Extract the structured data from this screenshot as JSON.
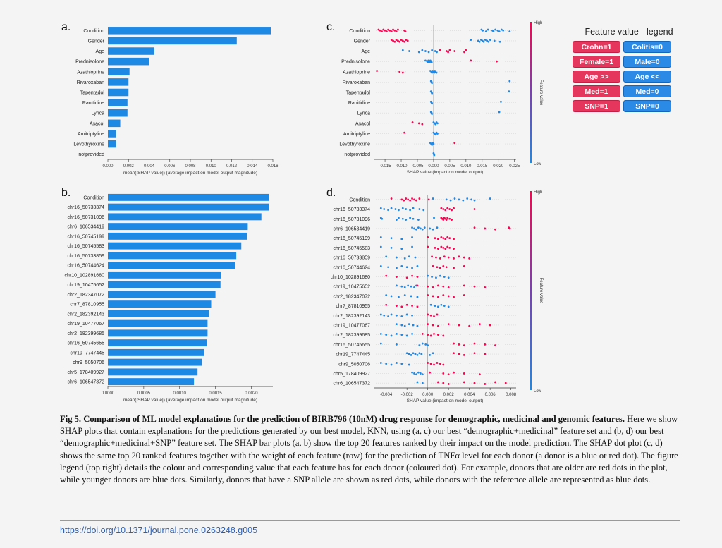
{
  "colors": {
    "bar": "#1e88e5",
    "red": "#ff0052",
    "blue": "#1e88e5"
  },
  "panels": {
    "a": "a.",
    "b": "b.",
    "c": "c.",
    "d": "d."
  },
  "chart_data": [
    {
      "panel": "a",
      "type": "bar",
      "orientation": "horizontal",
      "categories": [
        "Condition",
        "Gender",
        "Age",
        "Prednisolone",
        "Azathioprine",
        "Rivaroxaban",
        "Tapentadol",
        "Ranitidine",
        "Lyrica",
        "Asacol",
        "Amitriptyline",
        "Levothyroxine",
        "notprovided"
      ],
      "values": [
        0.0158,
        0.0125,
        0.0045,
        0.004,
        0.0021,
        0.002,
        0.002,
        0.0019,
        0.0019,
        0.0012,
        0.0008,
        0.0008,
        0.0
      ],
      "xlim": [
        0,
        0.016
      ],
      "xticks": [
        "0.000",
        "0.002",
        "0.004",
        "0.006",
        "0.008",
        "0.010",
        "0.012",
        "0.014",
        "0.016"
      ],
      "xlabel": "mean(|SHAP value|) (average impact on model output magnitude)"
    },
    {
      "panel": "b",
      "type": "bar",
      "orientation": "horizontal",
      "categories": [
        "Condition",
        "chr16_50733374",
        "chr16_50731096",
        "chr6_106534419",
        "chr16_50745199",
        "chr16_50745583",
        "chr16_50733859",
        "chr16_50744624",
        "chr10_102891680",
        "chr19_10475652",
        "chr2_182347072",
        "chr7_87810955",
        "chr2_182392143",
        "chr19_10477067",
        "chr2_182399685",
        "chr16_50745655",
        "chr19_7747445",
        "chr9_5050706",
        "chr5_178409927",
        "chr6_106547372"
      ],
      "values": [
        0.00225,
        0.00225,
        0.00214,
        0.00195,
        0.00194,
        0.00186,
        0.00179,
        0.00177,
        0.00158,
        0.00157,
        0.0015,
        0.00144,
        0.00141,
        0.00139,
        0.00139,
        0.00138,
        0.00134,
        0.00131,
        0.00125,
        0.0012
      ],
      "xlim": [
        0,
        0.0023
      ],
      "xticks": [
        "0.0000",
        "0.0005",
        "0.0010",
        "0.0015",
        "0.0020"
      ],
      "xlabel": "mean(|SHAP value|) (average impact on model output magnitude)"
    },
    {
      "panel": "c",
      "type": "scatter",
      "categories": [
        "Condition",
        "Gender",
        "Age",
        "Prednisolone",
        "Azathioprine",
        "Rivaroxaban",
        "Tapentadol",
        "Ranitidine",
        "Lyrica",
        "Asacol",
        "Amitriptyline",
        "Levothyroxine",
        "notprovided"
      ],
      "xlim": [
        -0.0185,
        0.0255
      ],
      "xticks": [
        -0.015,
        -0.01,
        -0.005,
        0.0,
        0.005,
        0.01,
        0.015,
        0.02,
        0.025
      ],
      "xticklabels": [
        "-0.015",
        "-0.010",
        "-0.005",
        "0.000",
        "0.005",
        "0.010",
        "0.015",
        "0.020",
        "0.025"
      ],
      "xlabel": "SHAP value (impact on model output)",
      "colorbar_label": "Feature value",
      "colorbar_high": "High",
      "colorbar_low": "Low",
      "points": [
        {
          "row": 0,
          "red": [
            -0.017,
            -0.0165,
            -0.016,
            -0.0155,
            -0.015,
            -0.0145,
            -0.014,
            -0.0135,
            -0.013,
            -0.0125,
            -0.012,
            -0.0115,
            -0.011,
            -0.009,
            -0.0087
          ],
          "blue": [
            0.0148,
            0.0152,
            0.0162,
            0.0168,
            0.0182,
            0.0185,
            0.0191,
            0.0198,
            0.0203,
            0.021,
            0.0215,
            0.0235
          ]
        },
        {
          "row": 1,
          "red": [
            -0.013,
            -0.0125,
            -0.012,
            -0.0115,
            -0.011,
            -0.0105,
            -0.01,
            -0.0095,
            -0.009,
            -0.0085,
            -0.008
          ],
          "blue": [
            0.0115,
            0.0138,
            0.0142,
            0.0147,
            0.0151,
            0.0155,
            0.016,
            0.0165,
            0.017,
            0.0175,
            0.0188,
            0.0205
          ]
        },
        {
          "row": 2,
          "red": [
            0.002,
            0.004,
            0.0045,
            0.005,
            0.0065,
            0.0095,
            0.01
          ],
          "blue": [
            -0.0095,
            -0.0075,
            -0.0045,
            -0.0035,
            -0.0025,
            -0.0015,
            -0.0005,
            0.0005,
            0.001
          ]
        },
        {
          "row": 3,
          "red": [
            0.0115,
            0.0195
          ],
          "blue": [
            -0.0025,
            -0.002,
            -0.0018,
            -0.0016,
            -0.0014,
            -0.0012,
            -0.001,
            -0.0008,
            -0.0006
          ]
        },
        {
          "row": 4,
          "red": [
            -0.0175,
            -0.0105,
            -0.0095
          ],
          "blue": [
            -0.001,
            -0.0007,
            -0.0005,
            -0.0003,
            0.0,
            0.0002,
            0.0004,
            0.0006,
            0.0009
          ]
        },
        {
          "row": 5,
          "red": [],
          "blue": [
            -0.0008,
            -0.0006,
            -0.0005,
            0.0235
          ]
        },
        {
          "row": 6,
          "red": [],
          "blue": [
            -0.0008,
            -0.0006,
            -0.0005,
            0.0233
          ]
        },
        {
          "row": 7,
          "red": [],
          "blue": [
            -0.0008,
            -0.0006,
            -0.0005,
            0.0208
          ]
        },
        {
          "row": 8,
          "red": [],
          "blue": [
            -0.0008,
            -0.0006,
            -0.0005,
            0.0203
          ]
        },
        {
          "row": 9,
          "red": [
            -0.0065,
            -0.0045,
            -0.0035
          ],
          "blue": [
            0.0,
            0.0003,
            0.0006,
            0.0009,
            0.0012
          ]
        },
        {
          "row": 10,
          "red": [
            -0.009
          ],
          "blue": [
            0.0,
            0.0003,
            0.0006,
            0.0009,
            0.0012
          ]
        },
        {
          "row": 11,
          "red": [
            0.0065
          ],
          "blue": [
            -0.001,
            -0.0007,
            -0.0005,
            -0.0003,
            0.0
          ]
        },
        {
          "row": 12,
          "red": [],
          "blue": [
            0.0,
            0.0001,
            0.0002
          ]
        }
      ]
    },
    {
      "panel": "d",
      "type": "scatter",
      "categories": [
        "Condition",
        "chr16_50733374",
        "chr16_50731096",
        "chr6_106534419",
        "chr16_50745199",
        "chr16_50745583",
        "chr16_50733859",
        "chr16_50744624",
        "chr10_102891680",
        "chr19_10475652",
        "chr2_182347072",
        "chr7_87810955",
        "chr2_182392143",
        "chr19_10477067",
        "chr2_182399685",
        "chr16_50745655",
        "chr19_7747445",
        "chr9_5050706",
        "chr5_178409927",
        "chr6_106547372"
      ],
      "xlim": [
        -0.0052,
        0.0085
      ],
      "xticks": [
        -0.004,
        -0.002,
        0.0,
        0.002,
        0.004,
        0.006,
        0.008
      ],
      "xticklabels": [
        "-0.004",
        "-0.002",
        "0.000",
        "0.002",
        "0.004",
        "0.006",
        "0.008"
      ],
      "xlabel": "SHAP value (impact on model output)",
      "colorbar_label": "Feature value",
      "colorbar_high": "High",
      "colorbar_low": "Low",
      "points": [
        {
          "row": 0,
          "red": [
            -0.0035,
            -0.0025,
            -0.0023,
            -0.0021,
            -0.0019,
            -0.0017,
            -0.0015,
            -0.0013,
            -0.0011,
            -0.0008,
            0.0001
          ],
          "blue": [
            0.0005,
            0.0018,
            0.0022,
            0.0026,
            0.003,
            0.0034,
            0.0038,
            0.0042,
            0.0045,
            0.006
          ]
        },
        {
          "row": 1,
          "red": [
            0.0013,
            0.0015,
            0.0017,
            0.0019,
            0.0021,
            0.0023,
            0.0025,
            0.0045
          ],
          "blue": [
            -0.0045,
            -0.0042,
            -0.0038,
            -0.0035,
            -0.0031,
            -0.0028,
            -0.0024,
            -0.0021,
            -0.0017,
            -0.0014,
            -0.0008,
            -0.0004
          ]
        },
        {
          "row": 2,
          "red": [
            0.0013,
            0.0014,
            0.0015,
            0.0016,
            0.0017,
            0.0018,
            0.0019,
            0.0021,
            0.0023
          ],
          "blue": [
            -0.0045,
            -0.0044,
            -0.003,
            -0.0028,
            -0.0024,
            -0.0021,
            -0.0017,
            -0.0014,
            -0.0009,
            0.0006
          ]
        },
        {
          "row": 3,
          "red": [
            0.0045,
            0.0055,
            0.0065,
            0.0078,
            0.0079
          ],
          "blue": [
            -0.0015,
            -0.0013,
            -0.0011,
            -0.0009,
            -0.0007,
            -0.0005,
            -0.0003,
            0.0002,
            0.0005,
            0.0009
          ]
        },
        {
          "row": 4,
          "red": [
            0.0,
            0.0007,
            0.001,
            0.0013,
            0.0015,
            0.0017,
            0.0019,
            0.0021,
            0.0025
          ],
          "blue": [
            -0.0045,
            -0.0035,
            -0.0025,
            -0.0015
          ]
        },
        {
          "row": 5,
          "red": [
            0.0,
            0.0007,
            0.001,
            0.0013,
            0.0015,
            0.0017,
            0.0019,
            0.0021,
            0.0025
          ],
          "blue": [
            -0.0045,
            -0.0035,
            -0.0025,
            -0.0015
          ]
        },
        {
          "row": 6,
          "red": [
            0.0004,
            0.0008,
            0.0012,
            0.0016,
            0.002,
            0.0025,
            0.003,
            0.0035,
            0.004
          ],
          "blue": [
            -0.004,
            -0.003,
            -0.0022,
            -0.0018,
            -0.0012
          ]
        },
        {
          "row": 7,
          "red": [
            0.0005,
            0.0009,
            0.0012,
            0.0015,
            0.0018,
            0.0025,
            0.0035
          ],
          "blue": [
            -0.0045,
            -0.0038,
            -0.003,
            -0.0025,
            -0.002,
            -0.0015,
            -0.001
          ]
        },
        {
          "row": 8,
          "red": [
            -0.004,
            -0.003,
            -0.002,
            -0.0015,
            -0.001
          ],
          "blue": [
            0.0,
            0.0004,
            0.0008,
            0.0012,
            0.0016,
            0.002
          ]
        },
        {
          "row": 9,
          "red": [
            -0.001,
            0.0,
            0.0005,
            0.001,
            0.0015,
            0.002,
            0.0035,
            0.0045,
            0.0055
          ],
          "blue": [
            -0.003,
            -0.0025,
            -0.0022,
            -0.0019,
            -0.0016,
            -0.0013,
            -0.0011
          ]
        },
        {
          "row": 10,
          "red": [
            0.0,
            0.0005,
            0.001,
            0.0015,
            0.002,
            0.0025,
            0.0035
          ],
          "blue": [
            -0.004,
            -0.0035,
            -0.0028,
            -0.0022,
            -0.0016,
            -0.001
          ]
        },
        {
          "row": 11,
          "red": [
            -0.004,
            -0.003,
            -0.0025,
            -0.002,
            -0.0015,
            -0.001
          ],
          "blue": [
            0.0003,
            0.0007,
            0.001,
            0.0013,
            0.0016,
            0.002
          ]
        },
        {
          "row": 12,
          "red": [
            0.0,
            0.0003,
            0.0006,
            0.0009
          ],
          "blue": [
            -0.0045,
            -0.0042,
            -0.0038,
            -0.0035,
            -0.003,
            -0.0025,
            -0.002,
            -0.0015
          ]
        },
        {
          "row": 13,
          "red": [
            0.0,
            0.0005,
            0.001,
            0.002,
            0.003,
            0.004,
            0.005,
            0.006
          ],
          "blue": [
            -0.003,
            -0.0025,
            -0.0022,
            -0.0018,
            -0.0014,
            -0.001
          ]
        },
        {
          "row": 14,
          "red": [
            -0.0005,
            0.0,
            0.0003,
            0.0006,
            0.001,
            0.0015
          ],
          "blue": [
            -0.0045,
            -0.004,
            -0.0035,
            -0.003,
            -0.0025,
            -0.002,
            -0.0015
          ]
        },
        {
          "row": 15,
          "red": [
            0.0025,
            0.003,
            0.0035,
            0.0045,
            0.0055,
            0.0065
          ],
          "blue": [
            -0.0045,
            -0.003,
            -0.0008,
            -0.0005,
            -0.0002,
            0.0
          ]
        },
        {
          "row": 16,
          "red": [
            0.0025,
            0.003,
            0.0035,
            0.0045,
            0.0055
          ],
          "blue": [
            -0.002,
            -0.0018,
            -0.0016,
            -0.0014,
            -0.0012,
            -0.001,
            -0.0008,
            -0.0006,
            0.0002,
            0.0005
          ]
        },
        {
          "row": 17,
          "red": [
            0.0,
            0.0003,
            0.0006,
            0.0009,
            0.0012,
            0.0015
          ],
          "blue": [
            -0.0045,
            -0.004,
            -0.0035,
            -0.003,
            -0.0025,
            -0.0018
          ]
        },
        {
          "row": 18,
          "red": [
            0.0002,
            0.0015,
            0.002,
            0.0025,
            0.0035,
            0.005
          ],
          "blue": [
            -0.0015,
            -0.0013,
            -0.0011,
            -0.0009,
            -0.0007,
            -0.0005
          ]
        },
        {
          "row": 19,
          "red": [
            0.001,
            0.0015,
            0.002,
            0.0035,
            0.0045,
            0.0055,
            0.0065,
            0.0075
          ],
          "blue": [
            -0.001,
            -0.0005
          ]
        }
      ]
    }
  ],
  "legend": {
    "title": "Feature value - legend",
    "rows": [
      {
        "red": "Crohn=1",
        "blue": "Colitis=0"
      },
      {
        "red": "Female=1",
        "blue": "Male=0"
      },
      {
        "red": "Age >>",
        "blue": "Age <<"
      },
      {
        "red": "Med=1",
        "blue": "Med=0"
      },
      {
        "red": "SNP=1",
        "blue": "SNP=0"
      }
    ]
  },
  "caption": {
    "bold": "Fig 5. Comparison of ML model explanations for the prediction of BIRB796 (10nM) drug response for demographic, medicinal and genomic features.",
    "text": " Here we show SHAP plots that contain explanations for the predictions generated by our best model, KNN, using (a, c) our best “demographic+medicinal” feature set and (b, d) our best “demographic+medicinal+SNP” feature set. The SHAP bar plots (a, b) show the top 20 features ranked by their impact on the model prediction. The SHAP dot plot (c, d) shows the same top 20 ranked features together with the weight of each feature (row) for the prediction of TNFα level for each donor (a donor is a blue or red dot). The figure legend (top right) details the colour and corresponding value that each feature has for each donor (coloured dot). For example, donors that are older are red dots in the plot, while younger donors are blue dots. Similarly, donors that have a SNP allele are shown as red dots, while donors with the reference allele are represented as blue dots."
  },
  "doi": "https://doi.org/10.1371/journal.pone.0263248.g005"
}
